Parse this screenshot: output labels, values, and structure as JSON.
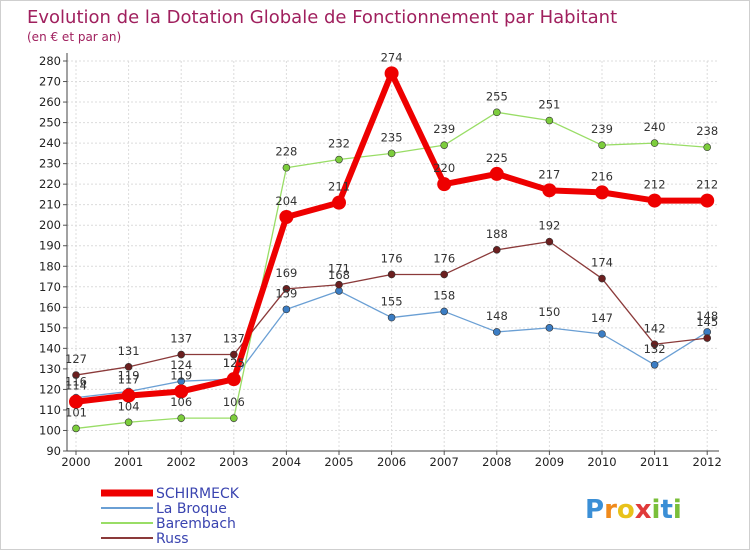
{
  "chart_data": {
    "type": "line",
    "title": "Evolution de la Dotation Globale de Fonctionnement par Habitant",
    "subtitle": "(en € et par an)",
    "categories": [
      "2000",
      "2001",
      "2002",
      "2003",
      "2004",
      "2005",
      "2006",
      "2007",
      "2008",
      "2009",
      "2010",
      "2011",
      "2012"
    ],
    "ylim": [
      90,
      280
    ],
    "ytick_step": 10,
    "grid": true,
    "legend_position": "bottom-left",
    "series": [
      {
        "name": "La Broque",
        "color": "#6a9fd4",
        "marker": "#3b7dc4",
        "values": [
          116,
          119,
          124,
          125,
          159,
          168,
          155,
          158,
          148,
          150,
          147,
          132,
          148
        ],
        "labels": [
          "116",
          "119",
          "124",
          "125",
          "159",
          "168",
          "155",
          "158",
          "148",
          "150",
          "147",
          "132",
          "148"
        ]
      },
      {
        "name": "Barembach",
        "color": "#99dd66",
        "marker": "#7ccd3c",
        "values": [
          101,
          104,
          106,
          106,
          228,
          232,
          235,
          239,
          255,
          251,
          239,
          240,
          238
        ],
        "labels": [
          "101",
          "104",
          "106",
          "106",
          "228",
          "232",
          "235",
          "239",
          "255",
          "251",
          "239",
          "240",
          "238"
        ]
      },
      {
        "name": "Russ",
        "color": "#8b3a3a",
        "marker": "#6b1f1f",
        "values": [
          127,
          131,
          137,
          137,
          169,
          171,
          176,
          176,
          188,
          192,
          174,
          142,
          145
        ],
        "labels": [
          "127",
          "131",
          "137",
          "137",
          "169",
          "171",
          "176",
          "176",
          "188",
          "192",
          "174",
          "142",
          "145"
        ]
      },
      {
        "name": "SCHIRMECK",
        "color": "#ee0000",
        "marker": "#ee0000",
        "values": [
          114,
          117,
          119,
          125,
          204,
          211,
          274,
          220,
          225,
          217,
          216,
          212,
          212
        ],
        "labels": [
          "114",
          "117",
          "119",
          "125",
          "204",
          "211",
          "274",
          "220",
          "225",
          "217",
          "216",
          "212",
          "212"
        ]
      }
    ],
    "legend": [
      "SCHIRMECK",
      "La Broque",
      "Barembach",
      "Russ"
    ]
  },
  "logo": {
    "text": "Proxiti",
    "letters": [
      "P",
      "r",
      "o",
      "x",
      "i",
      "t",
      "i"
    ],
    "colors": [
      "#3b8fd6",
      "#f08a1c",
      "#e8c21a",
      "#e03a3a",
      "#7abf3a",
      "#3b8fd6",
      "#7abf3a"
    ]
  }
}
